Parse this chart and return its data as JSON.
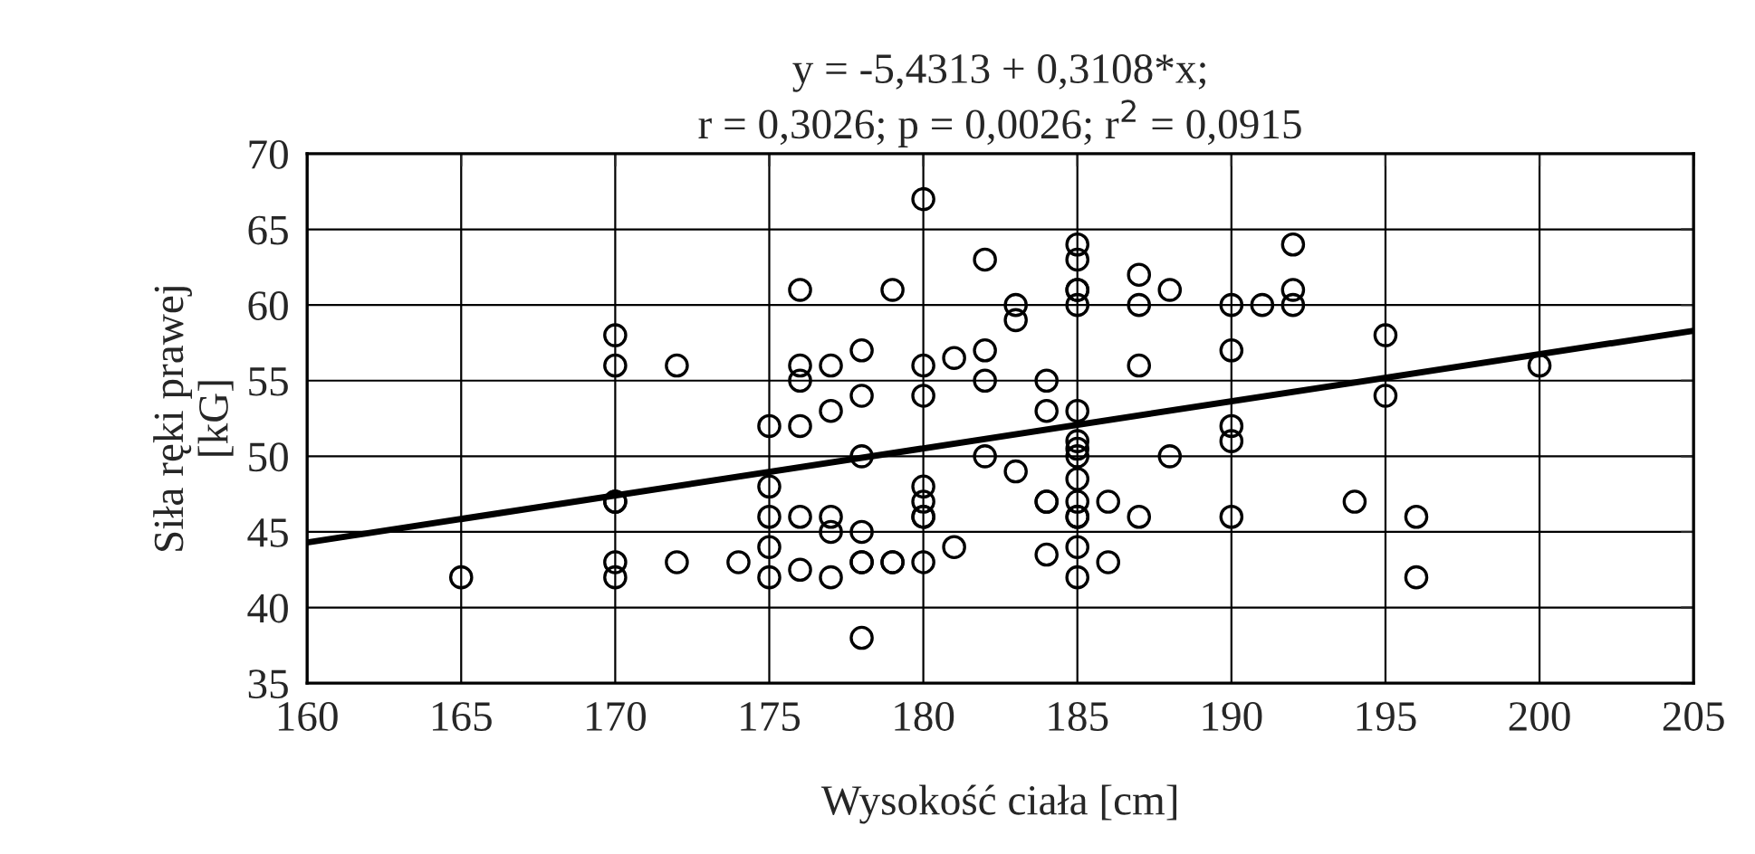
{
  "chart_data": {
    "type": "scatter",
    "title": "y = -5,4313 + 0,3108*x;\nr = 0,3026; p = 0,0026; r$^{2}$ = 0,0915",
    "xlabel": "Wysokość ciała [cm]",
    "ylabel": "Siła ręki prawej\n[kG]",
    "series": [
      {
        "color": "#000000",
        "marker": "circle",
        "x": [
          165,
          170,
          170,
          170,
          170,
          170,
          170,
          172,
          172,
          174,
          175,
          175,
          175,
          175,
          175,
          176,
          176,
          176,
          176,
          176,
          176,
          177,
          177,
          177,
          177,
          177,
          178,
          178,
          178,
          178,
          178,
          178,
          178,
          179,
          179,
          179,
          180,
          180,
          180,
          180,
          180,
          180,
          180,
          180,
          181,
          181,
          182,
          182,
          182,
          182,
          183,
          183,
          183,
          184,
          184,
          184,
          184,
          184,
          185,
          185,
          185,
          185,
          185,
          185,
          185,
          185,
          185,
          185,
          185,
          185,
          185,
          185,
          185,
          186,
          186,
          187,
          187,
          187,
          187,
          188,
          188,
          190,
          190,
          190,
          190,
          190,
          191,
          192,
          192,
          192,
          194,
          195,
          195,
          196,
          196,
          200
        ],
        "values": [
          42,
          58,
          56,
          47,
          47,
          43,
          42,
          56,
          43,
          43,
          52,
          48,
          46,
          44,
          42,
          61,
          56,
          55,
          52,
          46,
          42.5,
          56,
          53,
          46,
          45,
          42,
          57,
          54,
          50,
          45,
          43,
          43,
          38,
          61,
          43,
          43,
          67,
          56,
          54,
          48,
          47,
          46,
          46,
          43,
          56.5,
          44,
          63,
          57,
          55,
          50,
          60,
          59,
          49,
          55,
          53,
          47,
          47,
          43.5,
          64,
          63,
          61,
          61,
          60,
          53,
          51,
          50.5,
          50,
          48.5,
          47,
          46,
          46,
          44,
          42,
          47,
          43,
          62,
          60,
          56,
          46,
          61,
          50,
          60,
          57,
          52,
          51,
          46,
          60,
          64,
          61,
          60,
          47,
          58,
          54,
          46,
          42,
          56
        ]
      },
      {
        "type": "line",
        "color": "#000000",
        "line_style": "solid",
        "x": [
          160,
          205
        ],
        "values": [
          44.3,
          58.3
        ]
      }
    ],
    "xlim": [
      160,
      205
    ],
    "xticks": [
      160,
      165,
      170,
      175,
      180,
      185,
      190,
      195,
      200,
      205
    ],
    "ylim": [
      35,
      70
    ],
    "yticks": [
      35,
      40,
      45,
      50,
      55,
      60,
      65,
      70
    ],
    "grid": true,
    "legend": false
  }
}
